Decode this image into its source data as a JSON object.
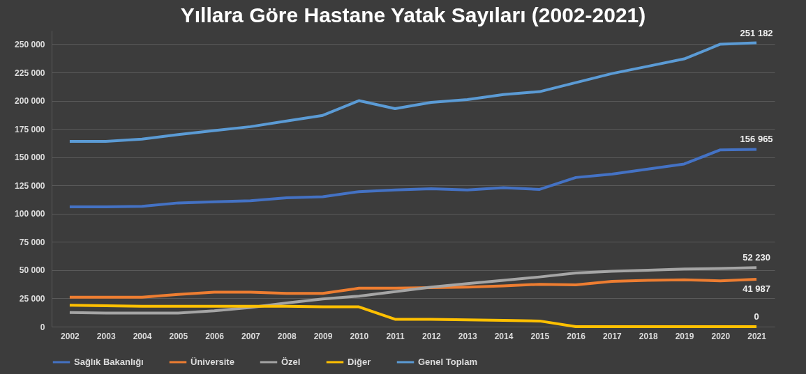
{
  "chart_data": {
    "type": "line",
    "title": "Yıllara Göre Hastane Yatak Sayıları (2002-2021)",
    "categories": [
      "2002",
      "2003",
      "2004",
      "2005",
      "2006",
      "2007",
      "2008",
      "2009",
      "2010",
      "2011",
      "2012",
      "2013",
      "2014",
      "2015",
      "2016",
      "2017",
      "2018",
      "2019",
      "2020",
      "2021"
    ],
    "series": [
      {
        "name": "Sağlık Bakanlığı",
        "color": "#4472c4",
        "values": [
          106000,
          106000,
          106500,
          109500,
          110500,
          111500,
          114000,
          115000,
          119500,
          121000,
          122000,
          121000,
          123000,
          121500,
          132000,
          135000,
          139500,
          144000,
          156500,
          156965
        ],
        "value_labels": [
          null,
          null,
          null,
          null,
          null,
          null,
          null,
          null,
          null,
          null,
          null,
          null,
          null,
          null,
          null,
          null,
          null,
          null,
          null,
          "156 965"
        ]
      },
      {
        "name": "Üniversite",
        "color": "#ed7d31",
        "values": [
          26000,
          26000,
          26000,
          28500,
          30500,
          30500,
          29500,
          29500,
          34000,
          34000,
          34500,
          35000,
          36000,
          37500,
          37000,
          40000,
          41000,
          41500,
          40500,
          41987
        ],
        "value_labels": [
          null,
          null,
          null,
          null,
          null,
          null,
          null,
          null,
          null,
          null,
          null,
          null,
          null,
          null,
          null,
          null,
          null,
          null,
          null,
          "41 987"
        ]
      },
      {
        "name": "Özel",
        "color": "#a5a5a5",
        "values": [
          12500,
          12000,
          12000,
          12000,
          14000,
          17000,
          21000,
          24500,
          27000,
          31000,
          35000,
          38000,
          41000,
          44000,
          47500,
          49000,
          50000,
          51000,
          51500,
          52230
        ],
        "value_labels": [
          null,
          null,
          null,
          null,
          null,
          null,
          null,
          null,
          null,
          null,
          null,
          null,
          null,
          null,
          null,
          null,
          null,
          null,
          null,
          "52 230"
        ]
      },
      {
        "name": "Diğer",
        "color": "#ffc000",
        "values": [
          19000,
          18500,
          18000,
          18000,
          18000,
          18000,
          18000,
          17500,
          17500,
          6500,
          6500,
          6000,
          5500,
          5000,
          0,
          0,
          0,
          0,
          0,
          0
        ],
        "value_labels": [
          null,
          null,
          null,
          null,
          null,
          null,
          null,
          null,
          null,
          null,
          null,
          null,
          null,
          null,
          null,
          null,
          null,
          null,
          null,
          "0"
        ]
      },
      {
        "name": "Genel Toplam",
        "color": "#5b9bd5",
        "values": [
          164000,
          164000,
          166000,
          170000,
          173500,
          177000,
          182000,
          187000,
          200000,
          193000,
          198500,
          201000,
          205500,
          208000,
          216000,
          224000,
          230500,
          237000,
          250000,
          251182
        ],
        "value_labels": [
          null,
          null,
          null,
          null,
          null,
          null,
          null,
          null,
          null,
          null,
          null,
          null,
          null,
          null,
          null,
          null,
          null,
          null,
          null,
          "251 182"
        ]
      }
    ],
    "ylim": [
      0,
      262000
    ],
    "yticks": [
      {
        "value": 0,
        "label": "0"
      },
      {
        "value": 25000,
        "label": "25 000"
      },
      {
        "value": 50000,
        "label": "50 000"
      },
      {
        "value": 75000,
        "label": "75 000"
      },
      {
        "value": 100000,
        "label": "100 000"
      },
      {
        "value": 125000,
        "label": "125 000"
      },
      {
        "value": 150000,
        "label": "150 000"
      },
      {
        "value": 175000,
        "label": "175 000"
      },
      {
        "value": 200000,
        "label": "200 000"
      },
      {
        "value": 225000,
        "label": "225 000"
      },
      {
        "value": 250000,
        "label": "250 000"
      }
    ],
    "grid": "y",
    "legend": "bottom",
    "marker": "none",
    "line_style": "solid"
  }
}
